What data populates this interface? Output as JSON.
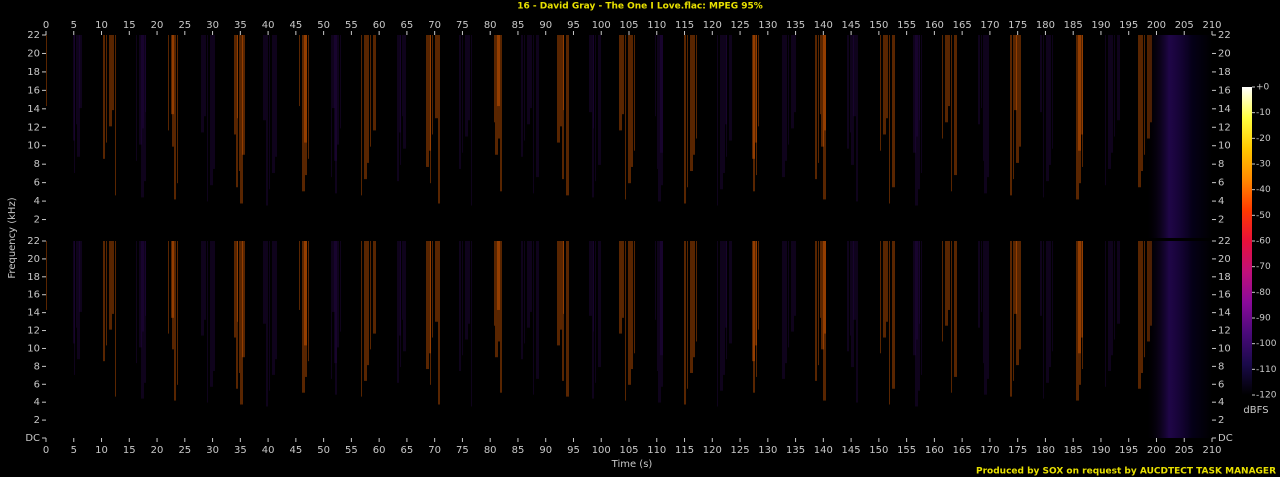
{
  "chart_data": {
    "type": "spectrogram",
    "title": "16 - David Gray - The One I Love.flac: MPEG 95%",
    "x_label": "Time (s)",
    "y_label": "Frequency (kHz)",
    "footer": "Produced by SOX on request by AUCDTECT TASK MANAGER",
    "xlim": [
      0,
      210
    ],
    "xticks": [
      0,
      5,
      10,
      15,
      20,
      25,
      30,
      35,
      40,
      45,
      50,
      55,
      60,
      65,
      70,
      75,
      80,
      85,
      90,
      95,
      100,
      105,
      110,
      115,
      120,
      125,
      130,
      135,
      140,
      145,
      150,
      155,
      160,
      165,
      170,
      175,
      180,
      185,
      190,
      195,
      200,
      205,
      210
    ],
    "ylim": [
      0,
      22
    ],
    "yticks": [
      {
        "value": 0,
        "label": "DC"
      },
      2,
      4,
      6,
      8,
      10,
      12,
      14,
      16,
      18,
      20,
      22
    ],
    "colormap": [
      "#000000",
      "#1a0a4a",
      "#4a0a7a",
      "#8a0a9a",
      "#c0107a",
      "#e8103a",
      "#ff3a00",
      "#ff8a00",
      "#ffc800",
      "#ffff40",
      "#ffffff"
    ],
    "colorbar": {
      "label": "dBFS",
      "lim": [
        -120,
        0
      ],
      "ticks": [
        {
          "value": 0,
          "label": "+0"
        },
        -10,
        -20,
        -30,
        -40,
        -50,
        -60,
        -70,
        -80,
        -90,
        -100,
        -110,
        -120
      ]
    }
  }
}
